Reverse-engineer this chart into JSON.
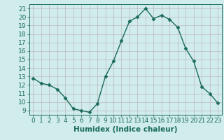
{
  "x": [
    0,
    1,
    2,
    3,
    4,
    5,
    6,
    7,
    8,
    9,
    10,
    11,
    12,
    13,
    14,
    15,
    16,
    17,
    18,
    19,
    20,
    21,
    22,
    23
  ],
  "y": [
    12.8,
    12.2,
    12.0,
    11.5,
    10.5,
    9.2,
    9.0,
    8.8,
    9.8,
    13.0,
    14.8,
    17.2,
    19.5,
    20.0,
    21.0,
    19.8,
    20.2,
    19.7,
    18.8,
    16.3,
    14.8,
    11.8,
    11.0,
    9.9
  ],
  "line_color": "#1a6b5a",
  "marker": "D",
  "marker_size": 2.5,
  "line_width": 1.0,
  "bg_color": "#d0ecec",
  "plot_bg_color": "#d0ecec",
  "grid_color": "#c0b8b8",
  "axis_color": "#1a6b5a",
  "xlabel": "Humidex (Indice chaleur)",
  "xlabel_fontsize": 7.5,
  "tick_fontsize": 6.5,
  "xlim": [
    -0.5,
    23.5
  ],
  "ylim": [
    8.5,
    21.5
  ],
  "yticks": [
    9,
    10,
    11,
    12,
    13,
    14,
    15,
    16,
    17,
    18,
    19,
    20,
    21
  ],
  "xticks": [
    0,
    1,
    2,
    3,
    4,
    5,
    6,
    7,
    8,
    9,
    10,
    11,
    12,
    13,
    14,
    15,
    16,
    17,
    18,
    19,
    20,
    21,
    22,
    23
  ]
}
